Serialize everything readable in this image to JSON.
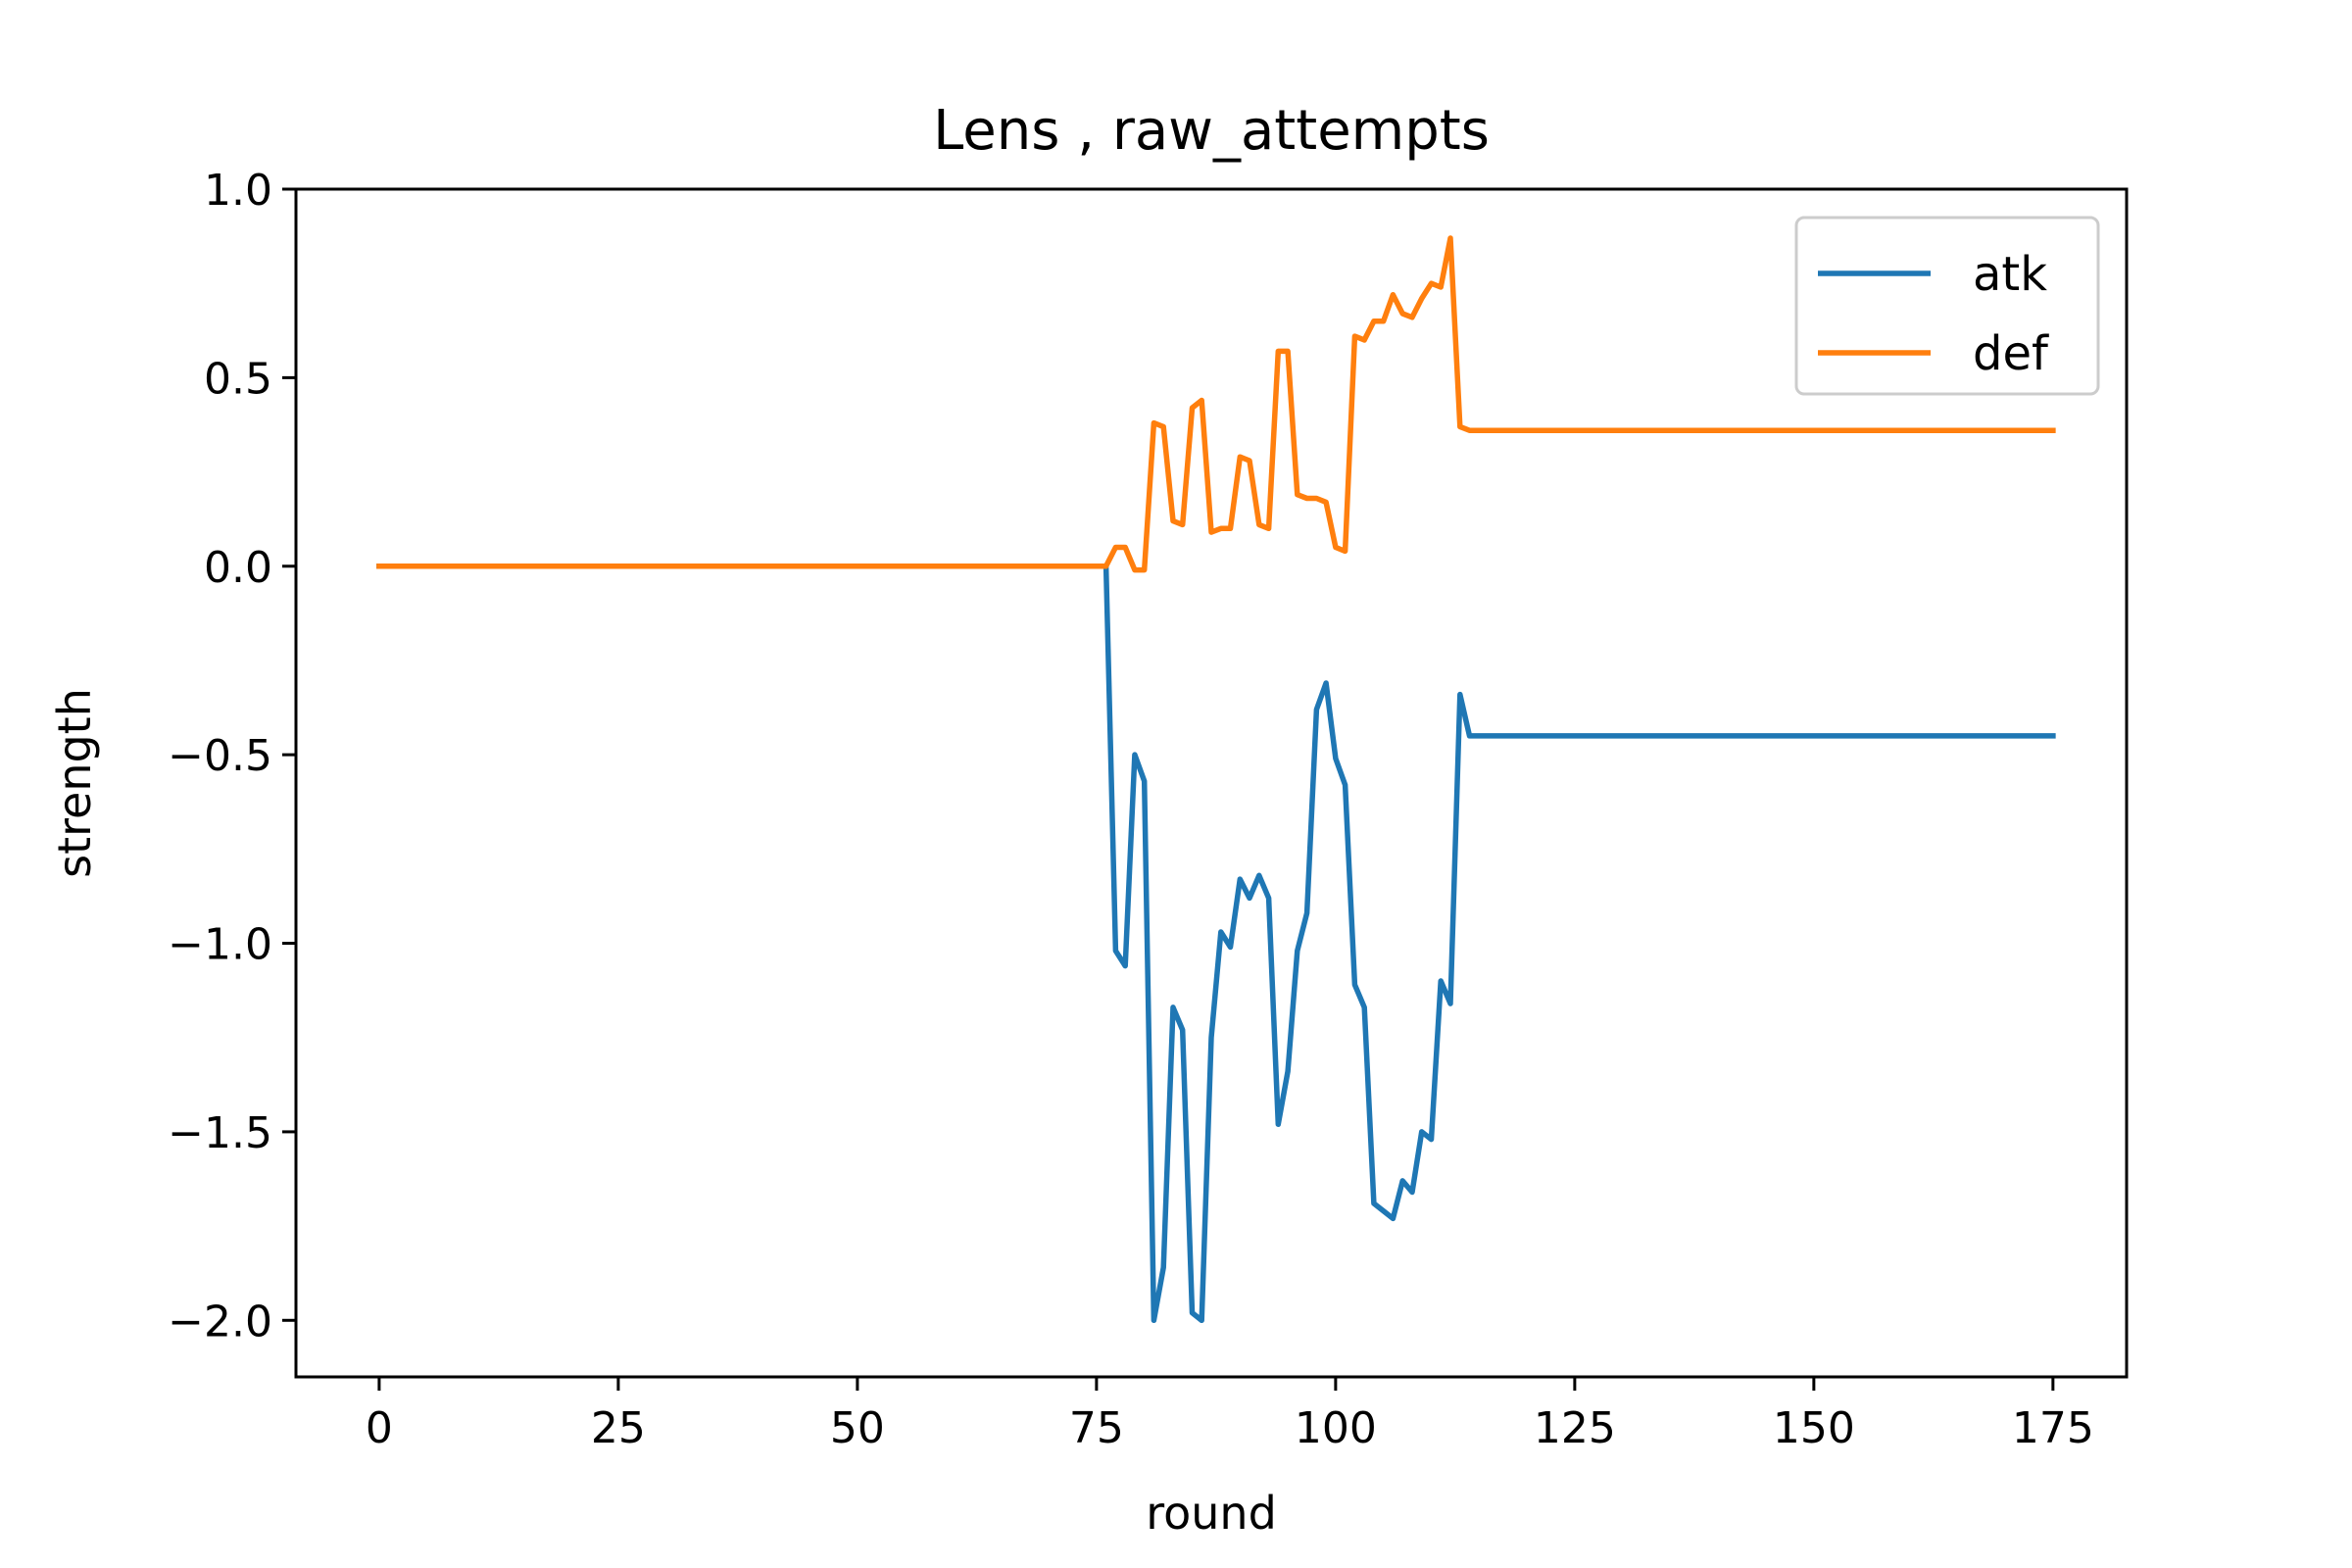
{
  "chart_data": {
    "type": "line",
    "title": "Lens , raw_attempts",
    "xlabel": "round",
    "ylabel": "strength",
    "xlim": [
      -8.7,
      182.7
    ],
    "ylim": [
      -2.15,
      1.0
    ],
    "xticks": [
      0,
      25,
      50,
      75,
      100,
      125,
      150,
      175
    ],
    "xtick_labels": [
      "0",
      "25",
      "50",
      "75",
      "100",
      "125",
      "150",
      "175"
    ],
    "yticks": [
      1.0,
      0.5,
      0.0,
      -0.5,
      -1.0,
      -1.5,
      -2.0
    ],
    "ytick_labels": [
      "1.0",
      "0.5",
      "0.0",
      "−0.5",
      "−1.0",
      "−1.5",
      "−2.0"
    ],
    "grid": false,
    "legend_position": "upper right",
    "series": [
      {
        "name": "atk",
        "color": "#1f77b4",
        "points": [
          [
            0,
            0.0
          ],
          [
            76,
            0.0
          ],
          [
            77,
            -1.02
          ],
          [
            78,
            -1.06
          ],
          [
            79,
            -0.5
          ],
          [
            80,
            -0.57
          ],
          [
            81,
            -2.0
          ],
          [
            82,
            -1.86
          ],
          [
            83,
            -1.17
          ],
          [
            84,
            -1.23
          ],
          [
            85,
            -1.98
          ],
          [
            86,
            -2.0
          ],
          [
            87,
            -1.25
          ],
          [
            88,
            -0.97
          ],
          [
            89,
            -1.01
          ],
          [
            90,
            -0.83
          ],
          [
            91,
            -0.88
          ],
          [
            92,
            -0.82
          ],
          [
            93,
            -0.88
          ],
          [
            94,
            -1.48
          ],
          [
            95,
            -1.34
          ],
          [
            96,
            -1.02
          ],
          [
            97,
            -0.92
          ],
          [
            98,
            -0.38
          ],
          [
            99,
            -0.31
          ],
          [
            100,
            -0.51
          ],
          [
            101,
            -0.58
          ],
          [
            102,
            -1.11
          ],
          [
            103,
            -1.17
          ],
          [
            104,
            -1.69
          ],
          [
            105,
            -1.71
          ],
          [
            106,
            -1.73
          ],
          [
            107,
            -1.63
          ],
          [
            108,
            -1.66
          ],
          [
            109,
            -1.5
          ],
          [
            110,
            -1.52
          ],
          [
            111,
            -1.1
          ],
          [
            112,
            -1.16
          ],
          [
            113,
            -0.34
          ],
          [
            114,
            -0.45
          ],
          [
            175,
            -0.45
          ]
        ]
      },
      {
        "name": "def",
        "color": "#ff7f0e",
        "points": [
          [
            0,
            0.0
          ],
          [
            76,
            0.0
          ],
          [
            77,
            0.05
          ],
          [
            78,
            0.05
          ],
          [
            79,
            -0.01
          ],
          [
            80,
            -0.01
          ],
          [
            81,
            0.38
          ],
          [
            82,
            0.37
          ],
          [
            83,
            0.12
          ],
          [
            84,
            0.11
          ],
          [
            85,
            0.42
          ],
          [
            86,
            0.44
          ],
          [
            87,
            0.09
          ],
          [
            88,
            0.1
          ],
          [
            89,
            0.1
          ],
          [
            90,
            0.29
          ],
          [
            91,
            0.28
          ],
          [
            92,
            0.11
          ],
          [
            93,
            0.1
          ],
          [
            94,
            0.57
          ],
          [
            95,
            0.57
          ],
          [
            96,
            0.19
          ],
          [
            97,
            0.18
          ],
          [
            98,
            0.18
          ],
          [
            99,
            0.17
          ],
          [
            100,
            0.05
          ],
          [
            101,
            0.04
          ],
          [
            102,
            0.61
          ],
          [
            103,
            0.6
          ],
          [
            104,
            0.65
          ],
          [
            105,
            0.65
          ],
          [
            106,
            0.72
          ],
          [
            107,
            0.67
          ],
          [
            108,
            0.66
          ],
          [
            109,
            0.71
          ],
          [
            110,
            0.75
          ],
          [
            111,
            0.74
          ],
          [
            112,
            0.87
          ],
          [
            113,
            0.37
          ],
          [
            114,
            0.36
          ],
          [
            175,
            0.36
          ]
        ]
      }
    ]
  }
}
